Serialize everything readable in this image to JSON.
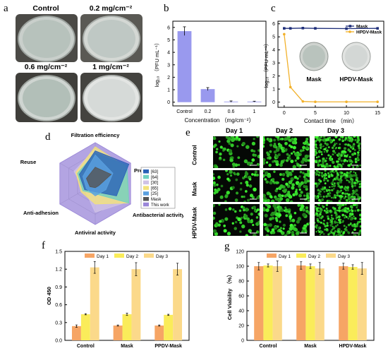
{
  "panel_labels": {
    "a": "a",
    "b": "b",
    "c": "c",
    "d": "d",
    "e": "e",
    "f": "f",
    "g": "g"
  },
  "panel_a": {
    "dishes": [
      "Control",
      "0.2 mg/cm⁻²",
      "0.6 mg/cm⁻²",
      "1 mg/cm⁻²"
    ]
  },
  "chart_data": [
    {
      "id": "b",
      "type": "bar",
      "categories": [
        "Control",
        "0.2",
        "0.6",
        "1"
      ],
      "values": [
        5.7,
        1.05,
        0.05,
        0.05
      ],
      "errors": [
        0.35,
        0.12,
        0.05,
        0.03
      ],
      "xlabel": "Concentration （mg/cm⁻²）",
      "ylabel": "log₁₀ （PFU mL⁻¹）",
      "ylim": [
        -0.3,
        6.5
      ],
      "yticks": [
        "0",
        "1",
        "2",
        "3",
        "4",
        "5",
        "6"
      ],
      "color": "#9999ee"
    },
    {
      "id": "c",
      "type": "line",
      "x": [
        0,
        1,
        3,
        5,
        10,
        15
      ],
      "series": [
        {
          "name": "Mask",
          "values": [
            5.65,
            5.65,
            5.67,
            5.65,
            5.63,
            5.65
          ],
          "color": "#1f2f7a"
        },
        {
          "name": "HPDV-Mask",
          "values": [
            5.2,
            1.15,
            0.05,
            0.02,
            0.02,
            0.02
          ],
          "color": "#f2b12a"
        }
      ],
      "xlabel": "Contact time （min）",
      "ylabel": "log₁₀ （PFU mL⁻¹）",
      "xticks": [
        "0",
        "5",
        "10",
        "15"
      ],
      "yticks": [
        "0",
        "1",
        "2",
        "3",
        "4",
        "5",
        "6"
      ],
      "ylim": [
        -0.4,
        6.2
      ],
      "xlim": [
        -1,
        16
      ],
      "inset_labels": [
        "Mask",
        "HPDV-Mask"
      ],
      "legend": "top-right"
    },
    {
      "id": "d",
      "type": "radar",
      "axes": [
        "Filtration efficiency",
        "Pressure drop",
        "Antibacterial activity",
        "Antiviral activity",
        "Anti-adhesion",
        "Reuse"
      ],
      "series": [
        {
          "name": "[63]",
          "values": [
            0.8,
            0.95,
            0.6,
            0.2,
            0.3,
            0.45
          ],
          "color": "#2a62b8"
        },
        {
          "name": "[64]",
          "values": [
            0.75,
            0.9,
            0.95,
            0.25,
            0.35,
            0.5
          ],
          "color": "#6fd0c0"
        },
        {
          "name": "[30]",
          "values": [
            0.85,
            0.85,
            0.9,
            0.7,
            0.3,
            0.6
          ],
          "color": "#cfc2e6"
        },
        {
          "name": "[65]",
          "values": [
            0.9,
            0.85,
            0.95,
            0.5,
            0.4,
            0.55
          ],
          "color": "#f2e27a"
        },
        {
          "name": "[25]",
          "values": [
            0.7,
            0.5,
            0.3,
            0.3,
            0.25,
            0.35
          ],
          "color": "#5aa0e0"
        },
        {
          "name": "Mask",
          "values": [
            0.4,
            0.45,
            0.1,
            0.1,
            0.15,
            0.25
          ],
          "color": "#555555"
        },
        {
          "name": "This work",
          "values": [
            1.0,
            1.0,
            1.0,
            1.0,
            1.0,
            1.0
          ],
          "color": "#9a86d8"
        }
      ]
    },
    {
      "id": "f",
      "type": "bar",
      "categories": [
        "Control",
        "Mask",
        "PPDV-Mask"
      ],
      "series": [
        {
          "name": "Day 1",
          "values": [
            0.24,
            0.25,
            0.25
          ],
          "errors": [
            0.02,
            0.01,
            0.01
          ],
          "color": "#f6a565"
        },
        {
          "name": "Day 2",
          "values": [
            0.44,
            0.44,
            0.43
          ],
          "errors": [
            0.01,
            0.02,
            0.01
          ],
          "color": "#faec5a"
        },
        {
          "name": "Day 3",
          "values": [
            1.23,
            1.2,
            1.2
          ],
          "errors": [
            0.1,
            0.11,
            0.1
          ],
          "color": "#fbd98a"
        }
      ],
      "ylabel": "OD 450",
      "ylim": [
        0,
        1.5
      ],
      "yticks": [
        "0.0",
        "0.3",
        "0.6",
        "0.9",
        "1.2",
        "1.5"
      ],
      "legend": "top"
    },
    {
      "id": "g",
      "type": "bar",
      "categories": [
        "Control",
        "Mask",
        "HPDV-Mask"
      ],
      "series": [
        {
          "name": "Day 1",
          "values": [
            100,
            101,
            100
          ],
          "errors": [
            5,
            5,
            4
          ],
          "color": "#f6a565"
        },
        {
          "name": "Day 2",
          "values": [
            101,
            100,
            99
          ],
          "errors": [
            2,
            3,
            3
          ],
          "color": "#faec5a"
        },
        {
          "name": "Day 3",
          "values": [
            100,
            97,
            97
          ],
          "errors": [
            7,
            8,
            8
          ],
          "color": "#fbd98a"
        }
      ],
      "ylabel": "Cell Viability （%）",
      "ylim": [
        0,
        120
      ],
      "yticks": [
        "0",
        "20",
        "40",
        "60",
        "80",
        "100",
        "120"
      ],
      "legend": "top"
    }
  ],
  "panel_e": {
    "columns": [
      "Day 1",
      "Day 2",
      "Day 3"
    ],
    "rows": [
      "Control",
      "Mask",
      "HPDV-Mask"
    ]
  }
}
